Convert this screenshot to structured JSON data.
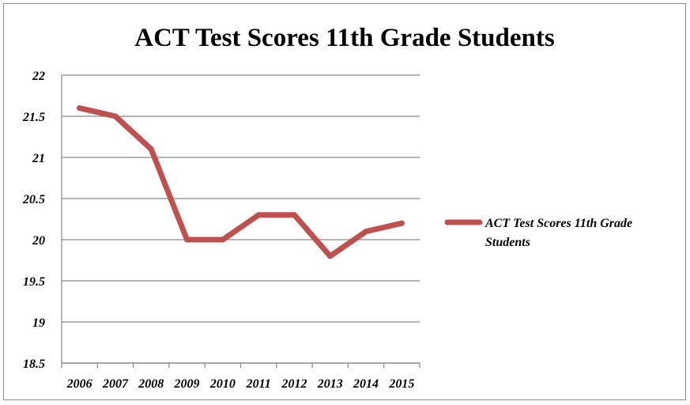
{
  "chart_data": {
    "type": "line",
    "title": "ACT Test Scores 11th Grade Students",
    "xlabel": "",
    "ylabel": "",
    "categories": [
      "2006",
      "2007",
      "2008",
      "2009",
      "2010",
      "2011",
      "2012",
      "2013",
      "2014",
      "2015"
    ],
    "series": [
      {
        "name": "ACT Test Scores 11th Grade Students",
        "values": [
          21.6,
          21.5,
          21.1,
          20.0,
          20.0,
          20.3,
          20.3,
          19.8,
          20.1,
          20.2
        ],
        "color": "#c0504d"
      }
    ],
    "ylim": [
      18.5,
      22
    ],
    "yticks": [
      "18.5",
      "19",
      "19.5",
      "20",
      "20.5",
      "21",
      "21.5",
      "22"
    ],
    "grid": true,
    "legend": "right",
    "legend_lines": [
      "ACT Test Scores 11th Grade",
      "Students"
    ]
  }
}
